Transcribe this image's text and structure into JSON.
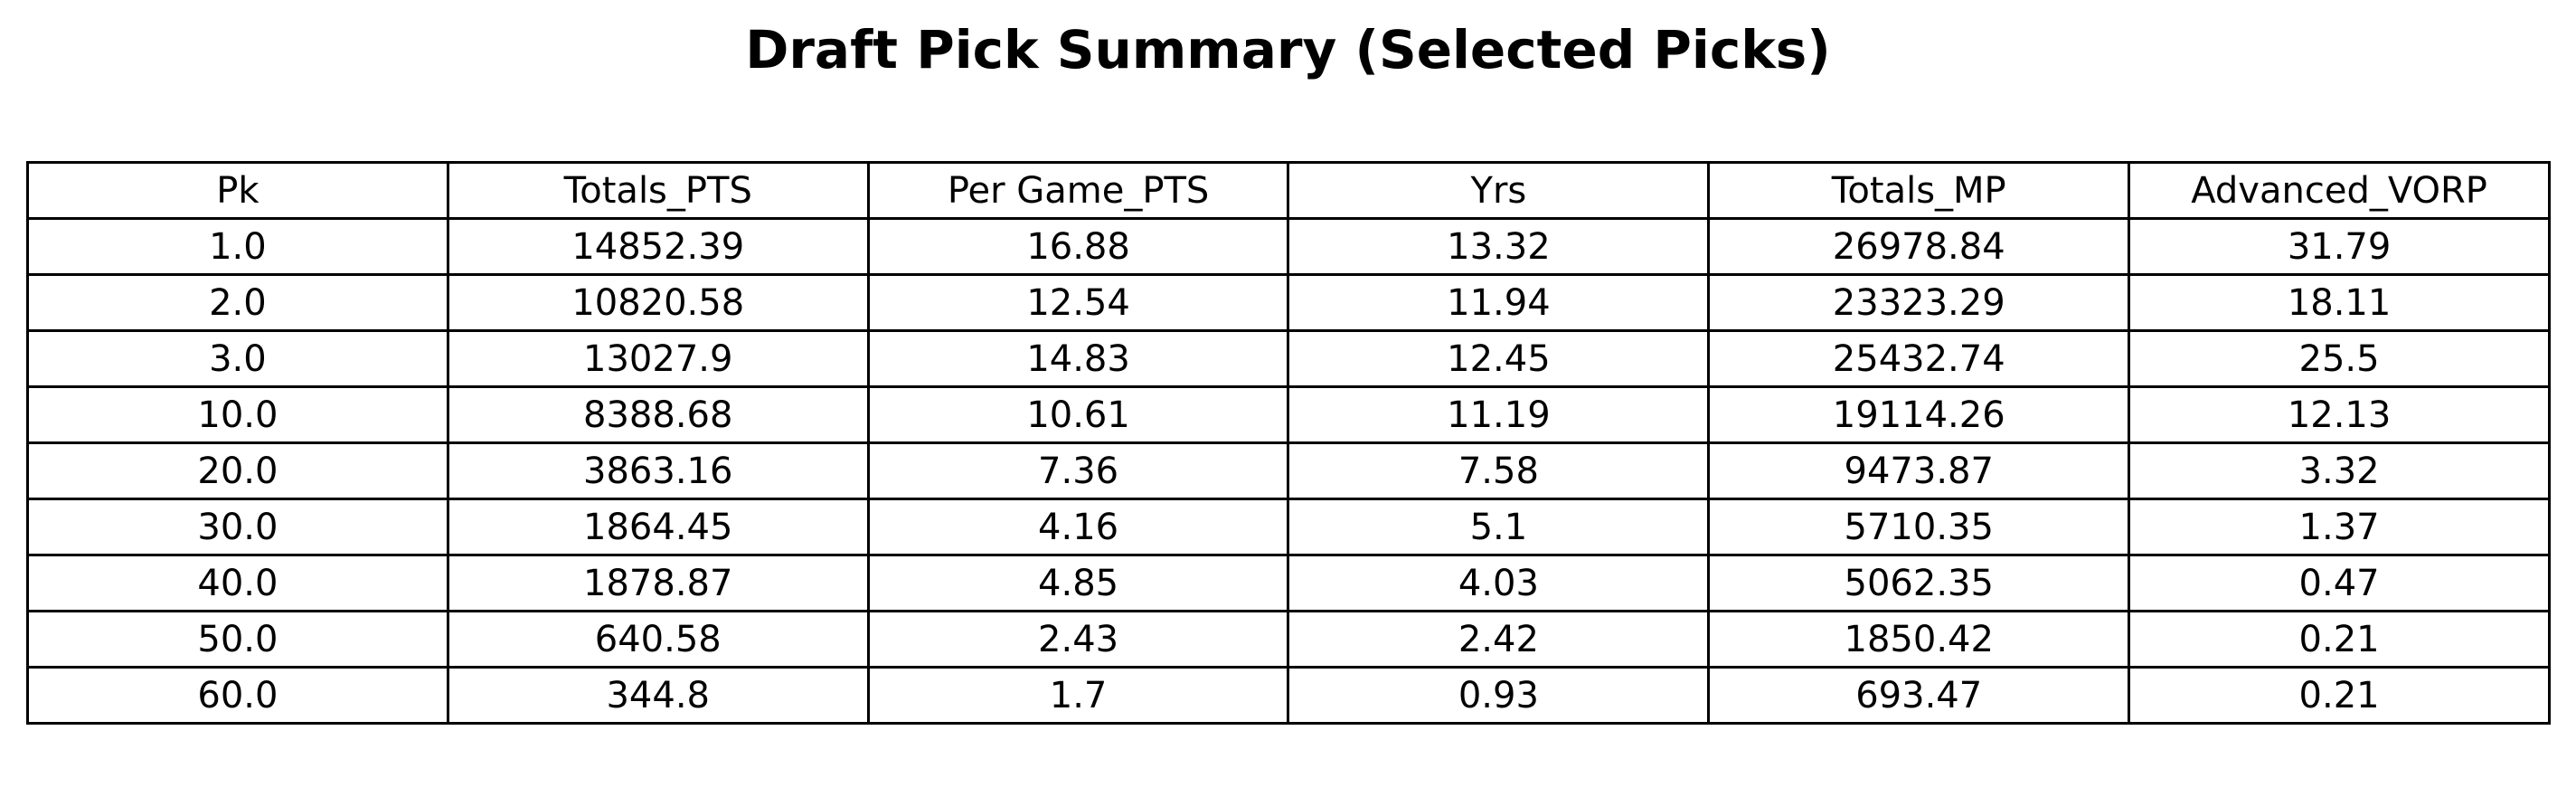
{
  "chart_data": {
    "type": "table",
    "title": "Draft Pick Summary (Selected Picks)",
    "columns": [
      "Pk",
      "Totals_PTS",
      "Per Game_PTS",
      "Yrs",
      "Totals_MP",
      "Advanced_VORP"
    ],
    "rows": [
      [
        "1.0",
        "14852.39",
        "16.88",
        "13.32",
        "26978.84",
        "31.79"
      ],
      [
        "2.0",
        "10820.58",
        "12.54",
        "11.94",
        "23323.29",
        "18.11"
      ],
      [
        "3.0",
        "13027.9",
        "14.83",
        "12.45",
        "25432.74",
        "25.5"
      ],
      [
        "10.0",
        "8388.68",
        "10.61",
        "11.19",
        "19114.26",
        "12.13"
      ],
      [
        "20.0",
        "3863.16",
        "7.36",
        "7.58",
        "9473.87",
        "3.32"
      ],
      [
        "30.0",
        "1864.45",
        "4.16",
        "5.1",
        "5710.35",
        "1.37"
      ],
      [
        "40.0",
        "1878.87",
        "4.85",
        "4.03",
        "5062.35",
        "0.47"
      ],
      [
        "50.0",
        "640.58",
        "2.43",
        "2.42",
        "1850.42",
        "0.21"
      ],
      [
        "60.0",
        "344.8",
        "1.7",
        "0.93",
        "693.47",
        "0.21"
      ]
    ]
  }
}
